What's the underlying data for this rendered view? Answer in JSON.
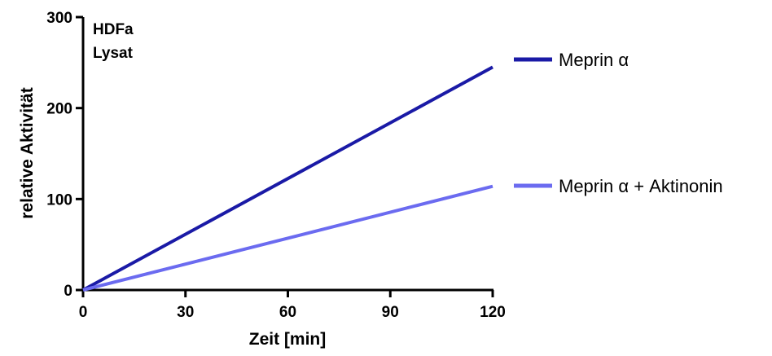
{
  "chart_data": {
    "type": "line",
    "title": "",
    "xlabel": "Zeit [min]",
    "ylabel": "relative Aktivität",
    "xlim": [
      0,
      120
    ],
    "ylim": [
      0,
      300
    ],
    "xticks": [
      0,
      30,
      60,
      90,
      120
    ],
    "yticks": [
      0,
      100,
      200,
      300
    ],
    "grid": false,
    "legend_position": "right",
    "annotations": [
      "HDFa",
      "Lysat"
    ],
    "series": [
      {
        "name": "Meprin α",
        "color": "#1a1aa6",
        "x": [
          0,
          120
        ],
        "y": [
          0,
          245
        ]
      },
      {
        "name": "Meprin α + Aktinonin",
        "color": "#6b6bf0",
        "x": [
          0,
          120
        ],
        "y": [
          0,
          114
        ]
      }
    ]
  }
}
